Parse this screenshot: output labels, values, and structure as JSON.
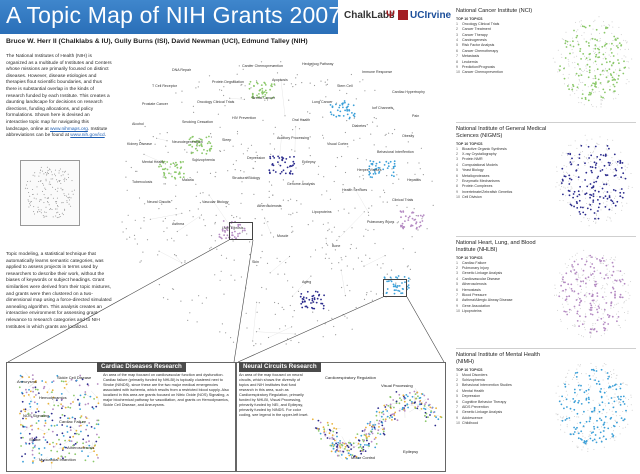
{
  "title": "A Topic Map of NIH Grants 2007",
  "logos": {
    "chalk": "ChalkLabs",
    "iu": "Ψ",
    "uci": "UCIrvine"
  },
  "authors": "Bruce W. Herr II (Chalklabs & IU), Gully Burns (ISI), David Newman (UCI), Edmund Talley (NIH)",
  "intro": {
    "text1": "The National Institutes of Health (NIH) is organized as a multitude of Institutes and Centers whose missions are primarily focused on distinct diseases. However, disease etiologies and therapies flout scientific boundaries, and thus there is substantial overlap in the kinds of research funded by each Institute. This creates a daunting landscape for decisions on research directions, funding allocations, and policy formulations. Shown here is devised an interactive topic map for navigating this landscape, online at",
    "link1": "www.nihmaps.org",
    "text2": ". Institute abbreviations can be found at",
    "link2": "www.nih.gov/icd",
    "text3": "."
  },
  "method": "Topic modeling, a statistical technique that automatically learns semantic categories, was applied to assess projects in terms used by researchers to describe their work, without the biases of keywords or subject headings. Grant similarities were derived from their topic mixtures, and grants were then clustered on a two-dimensional map using a force-directed simulated annealing algorithm. This analysis creates an interactive environment for assessing grant relevance to research categories and to NIH Institutes in which grants are localized.",
  "map_labels": [
    "DNA Repair",
    "Cancer Chemoprevention",
    "Hedgehog Pathway",
    "Immune Response",
    "T Cell Receptor",
    "Protein Degradation",
    "Apoptosis",
    "Stem Cell",
    "Cardiac Hypertrophy",
    "Prostate Cancer",
    "Oncology Clinical Trials",
    "Breast Cancer",
    "Lung Cancer",
    "Ion Channels",
    "Pain",
    "Alcohol",
    "Smoking Cessation",
    "HIV Prevention",
    "Oral Health",
    "Diabetes",
    "Obesity",
    "Kidney Disease",
    "Neurodegeneration",
    "Sleep",
    "Auditory Processing",
    "Visual Cortex",
    "Behavioral Intervention",
    "Mental Health",
    "Schizophrenia",
    "Depression",
    "Epilepsy",
    "Herpes Viruses",
    "Hepatitis",
    "Tuberculosis",
    "Malaria",
    "Structural Biology",
    "Genome Analysis",
    "Health Services",
    "Clinical Trials",
    "Neural Circuits",
    "Vascular Biology",
    "Atherosclerosis",
    "Lipoproteins",
    "Pulmonary Injury",
    "Asthma",
    "Liver Fibrosis",
    "Muscle",
    "Bone",
    "Skin",
    "Aging"
  ],
  "insets": [
    {
      "title": "Cardiac Diseases Research",
      "text": "An area of the map focused on cardiovascular function and dysfunction. Cardiac failure (primarily funded by NHLBI) is topically clustered next to Stroke (NINDS), since these are the two major medical emergencies associated with ischemia, which results from a restricted blood supply. Also localized in this area are grants focused on Nitric Oxide (NOS) Signaling, a major biochemical pathway for vasodilation, and grants on Hemodynamics, Sickle Cell Disease, and Aneurysms.",
      "labels": [
        "Aneurysms",
        "Sickle Cell Disease",
        "Hemodynamics",
        "NOS Signaling",
        "Cardiac Failure",
        "Stroke",
        "Atherosclerosis",
        "Myocardial Infarction"
      ]
    },
    {
      "title": "Neural Circuits Research",
      "text": "An area of the map focused on neural circuits, which shows the diversity of topics and NIH Institutes that fund research in this area, such as Cardiorespiratory Regulation, primarily funded by NHLBI, Visual Processing, primarily funded by NEI, and Epilepsy, primarily funded by NINDS. For color coding, see legend in the upper-left inset.",
      "labels": [
        "Cardiorespiratory Regulation",
        "Visual Processing",
        "Motor Control",
        "Epilepsy"
      ]
    }
  ],
  "institutes": [
    {
      "name": "National Cancer Institute (NCI)",
      "sub": "TOP 10 TOPICS",
      "color": "#8bc86a",
      "topics": [
        "Oncology Clinical Trials",
        "Cancer Treatment",
        "Cancer Therapy",
        "Carcinogenesis",
        "Risk Factor Analysis",
        "Cancer Chemotherapy",
        "Metastasis",
        "Leukemia",
        "Prediction/Prognosis",
        "Cancer Chemoprevention"
      ]
    },
    {
      "name": "National Institute of General Medical Sciences (NIGMS)",
      "sub": "TOP 10 TOPICS",
      "color": "#2a2a8c",
      "topics": [
        "Bioactive Organic Synthesis",
        "X-ray Crystallography",
        "Protein NMR",
        "Computational Models",
        "Yeast Biology",
        "Metalloproteases",
        "Enzymatic Mechanisms",
        "Protein Complexes",
        "Invertebrate/Zebrafish Genetics",
        "Cell Division"
      ]
    },
    {
      "name": "National Heart, Lung, and Blood Institute (NHLBI)",
      "sub": "TOP 10 TOPICS",
      "color": "#b48ac2",
      "topics": [
        "Cardiac Failure",
        "Pulmonary Injury",
        "Genetic Linkage Analysis",
        "Cardiovascular Disease",
        "Atherosclerosis",
        "Hemostasis",
        "Blood Pressure",
        "Asthma/Allergic Airway Disease",
        "Gene Association",
        "Lipoproteins"
      ]
    },
    {
      "name": "National Institute of Mental Health (NIMH)",
      "sub": "TOP 10 TOPICS",
      "color": "#3a9fd8",
      "topics": [
        "Mood Disorders",
        "Schizophrenia",
        "Behavioral Intervention Studies",
        "Mental Health",
        "Depression",
        "Cognitive Behavior Therapy",
        "AIDS Prevention",
        "Genetic Linkage Analysis",
        "Adolescence",
        "Childhood"
      ]
    }
  ]
}
